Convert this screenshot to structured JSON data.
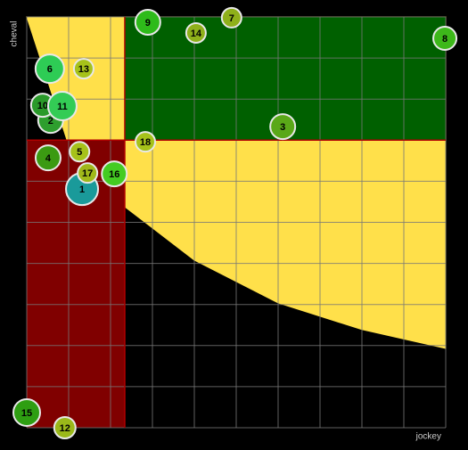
{
  "chart_data": {
    "type": "bubble",
    "x_label": "jockey",
    "y_label": "cheval",
    "xlim": [
      0,
      10
    ],
    "ylim": [
      0,
      10
    ],
    "xticks": [
      0,
      1,
      2,
      3,
      4,
      5,
      6,
      7,
      8,
      9,
      10
    ],
    "yticks": [
      0,
      1,
      2,
      3,
      4,
      5,
      6,
      7,
      8,
      9,
      10
    ],
    "grid": true,
    "thresholds": {
      "x": 2.34,
      "y": 7
    },
    "zone_colors": {
      "low": "#800000",
      "high": "#006000",
      "curve": "#ffe04a"
    },
    "curve": {
      "x": [
        0,
        0.96,
        2,
        2.34,
        4,
        6,
        8,
        10
      ],
      "y": [
        10,
        7,
        5.85,
        5.38,
        4.08,
        3.04,
        2.39,
        1.93
      ]
    },
    "labels": [
      "1",
      "2",
      "3",
      "4",
      "5",
      "6",
      "7",
      "8",
      "9",
      "10",
      "11",
      "12",
      "13",
      "14",
      "15",
      "16",
      "17",
      "18"
    ],
    "x": [
      1.32,
      0.57,
      6.11,
      0.51,
      1.26,
      0.55,
      4.89,
      9.98,
      2.89,
      0.38,
      0.85,
      0.91,
      1.36,
      4.04,
      0.0,
      2.09,
      1.45,
      2.83
    ],
    "y": [
      5.81,
      7.48,
      7.33,
      6.57,
      6.72,
      8.74,
      9.98,
      9.48,
      9.87,
      7.85,
      7.83,
      0.0,
      8.74,
      9.61,
      0.37,
      6.18,
      6.2,
      6.96
    ],
    "sizes": [
      18,
      14,
      14,
      14,
      11,
      16,
      11,
      13,
      14,
      13,
      16,
      12,
      11,
      11,
      15,
      14,
      11,
      11
    ],
    "colors": [
      "#1a9a9a",
      "#2e9e2e",
      "#5aa818",
      "#3b9a12",
      "#a6c21a",
      "#2ecc55",
      "#8fb01a",
      "#3db81a",
      "#2ebb1a",
      "#2a9a2a",
      "#33cc55",
      "#9ab81a",
      "#a6c21a",
      "#8fb01a",
      "#2e9e12",
      "#44cc22",
      "#a0b81a",
      "#a6c21a"
    ]
  }
}
